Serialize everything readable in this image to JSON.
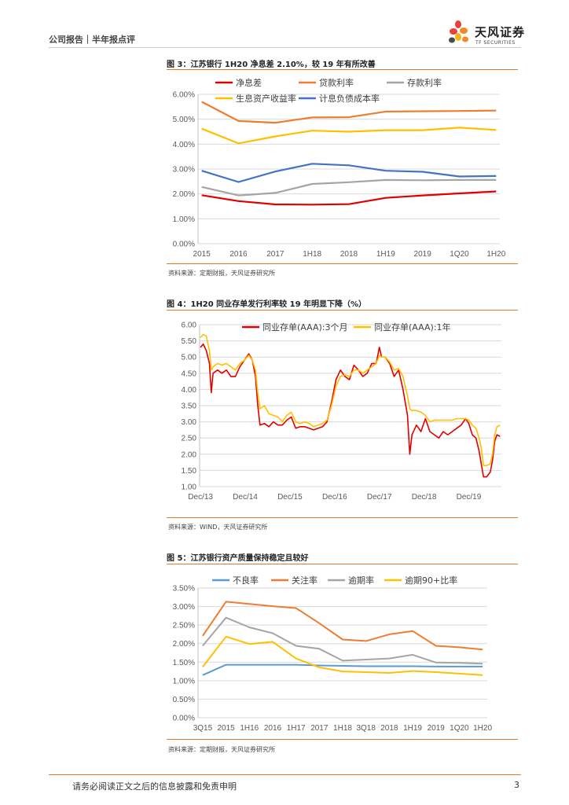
{
  "header": {
    "left": "公司报告｜半年报点评",
    "logo_cn": "天风证券",
    "logo_en": "TF SECURITIES"
  },
  "footer": {
    "disclaimer": "请务必阅读正文之后的信息披露和免责申明",
    "page": "3"
  },
  "colors": {
    "accent": "#e07b28",
    "red": "#e00000",
    "orange": "#ed7d31",
    "gray": "#a5a5a5",
    "yellow": "#ffc000",
    "blue": "#4472c4"
  },
  "figures": [
    {
      "title": "图 3：江苏银行 1H20 净息差 2.10%，较 19 年有所改善",
      "source": "资料来源：定期财报，天风证券研究所"
    },
    {
      "title": "图 4：1H20 同业存单发行利率较 19 年明显下降（%）",
      "source": "资料来源：WIND，天风证券研究所"
    },
    {
      "title": "图 5：江苏银行资产质量保持稳定且较好",
      "source": "资料来源：定期财报，天风证券研究所"
    }
  ],
  "chart_data": [
    {
      "type": "line",
      "categories": [
        "2015",
        "2016",
        "2017",
        "1H18",
        "2018",
        "1H19",
        "2019",
        "1Q20",
        "1H20"
      ],
      "ylim": [
        0,
        6
      ],
      "yticks": [
        "0.00%",
        "1.00%",
        "2.00%",
        "3.00%",
        "4.00%",
        "5.00%",
        "6.00%"
      ],
      "series": [
        {
          "name": "净息差",
          "color": "#e00000",
          "values": [
            1.95,
            1.71,
            1.58,
            1.57,
            1.59,
            1.84,
            1.94,
            2.02,
            2.1
          ]
        },
        {
          "name": "贷款利率",
          "color": "#ed7d31",
          "values": [
            5.7,
            4.93,
            4.86,
            5.07,
            5.08,
            5.31,
            5.32,
            5.33,
            5.35
          ]
        },
        {
          "name": "存款利率",
          "color": "#a5a5a5",
          "values": [
            2.28,
            1.94,
            2.04,
            2.4,
            2.47,
            2.56,
            2.55,
            2.56,
            2.56
          ]
        },
        {
          "name": "生息资产收益率",
          "color": "#ffc000",
          "values": [
            4.62,
            4.03,
            4.31,
            4.54,
            4.5,
            4.56,
            4.56,
            4.66,
            4.57
          ]
        },
        {
          "name": "计息负债成本率",
          "color": "#4472c4",
          "values": [
            2.93,
            2.48,
            2.9,
            3.21,
            3.15,
            2.93,
            2.89,
            2.7,
            2.72
          ]
        }
      ],
      "grid": true,
      "legend": "top"
    },
    {
      "type": "line",
      "x_start": 2013.9,
      "x_end": 2020.65,
      "xticks": [
        {
          "label": "Dec/13",
          "pos": 2013.92
        },
        {
          "label": "Dec/14",
          "pos": 2014.92
        },
        {
          "label": "Dec/15",
          "pos": 2015.92
        },
        {
          "label": "Dec/16",
          "pos": 2016.92
        },
        {
          "label": "Dec/17",
          "pos": 2017.92
        },
        {
          "label": "Dec/18",
          "pos": 2018.92
        },
        {
          "label": "Dec/19",
          "pos": 2019.92
        }
      ],
      "ylim": [
        1,
        6
      ],
      "yticks": [
        "1.00",
        "1.50",
        "2.00",
        "2.50",
        "3.00",
        "3.50",
        "4.00",
        "4.50",
        "5.00",
        "5.50",
        "6.00"
      ],
      "series": [
        {
          "name": "同业存单(AAA):3个月",
          "color": "#e00000",
          "points": [
            [
              2013.92,
              5.3
            ],
            [
              2013.98,
              5.4
            ],
            [
              2014.05,
              5.2
            ],
            [
              2014.12,
              4.8
            ],
            [
              2014.16,
              3.9
            ],
            [
              2014.2,
              4.5
            ],
            [
              2014.3,
              4.6
            ],
            [
              2014.4,
              4.5
            ],
            [
              2014.5,
              4.6
            ],
            [
              2014.6,
              4.4
            ],
            [
              2014.7,
              4.4
            ],
            [
              2014.8,
              4.7
            ],
            [
              2014.9,
              4.9
            ],
            [
              2015.0,
              5.1
            ],
            [
              2015.08,
              4.9
            ],
            [
              2015.15,
              4.4
            ],
            [
              2015.2,
              3.5
            ],
            [
              2015.25,
              2.9
            ],
            [
              2015.35,
              2.95
            ],
            [
              2015.45,
              2.85
            ],
            [
              2015.55,
              3.0
            ],
            [
              2015.65,
              2.9
            ],
            [
              2015.75,
              2.9
            ],
            [
              2015.85,
              3.05
            ],
            [
              2015.95,
              3.15
            ],
            [
              2016.05,
              2.8
            ],
            [
              2016.15,
              2.85
            ],
            [
              2016.25,
              2.85
            ],
            [
              2016.35,
              2.8
            ],
            [
              2016.45,
              2.75
            ],
            [
              2016.55,
              2.8
            ],
            [
              2016.65,
              2.85
            ],
            [
              2016.75,
              3.0
            ],
            [
              2016.85,
              3.6
            ],
            [
              2016.95,
              4.3
            ],
            [
              2017.05,
              4.6
            ],
            [
              2017.15,
              4.4
            ],
            [
              2017.25,
              4.3
            ],
            [
              2017.35,
              4.75
            ],
            [
              2017.45,
              4.6
            ],
            [
              2017.55,
              4.4
            ],
            [
              2017.65,
              4.5
            ],
            [
              2017.75,
              4.8
            ],
            [
              2017.85,
              4.8
            ],
            [
              2017.92,
              5.3
            ],
            [
              2017.97,
              5.0
            ],
            [
              2018.05,
              5.0
            ],
            [
              2018.15,
              4.8
            ],
            [
              2018.25,
              4.4
            ],
            [
              2018.35,
              4.6
            ],
            [
              2018.45,
              4.0
            ],
            [
              2018.55,
              3.2
            ],
            [
              2018.6,
              2.0
            ],
            [
              2018.65,
              2.6
            ],
            [
              2018.75,
              2.9
            ],
            [
              2018.85,
              2.7
            ],
            [
              2018.95,
              3.1
            ],
            [
              2019.05,
              2.7
            ],
            [
              2019.15,
              2.6
            ],
            [
              2019.25,
              2.5
            ],
            [
              2019.35,
              2.7
            ],
            [
              2019.45,
              2.6
            ],
            [
              2019.55,
              2.7
            ],
            [
              2019.65,
              2.8
            ],
            [
              2019.75,
              2.9
            ],
            [
              2019.85,
              3.1
            ],
            [
              2019.92,
              2.95
            ],
            [
              2020.0,
              2.6
            ],
            [
              2020.08,
              2.5
            ],
            [
              2020.15,
              2.1
            ],
            [
              2020.2,
              1.7
            ],
            [
              2020.25,
              1.3
            ],
            [
              2020.32,
              1.3
            ],
            [
              2020.4,
              1.45
            ],
            [
              2020.45,
              1.8
            ],
            [
              2020.5,
              2.4
            ],
            [
              2020.55,
              2.6
            ],
            [
              2020.62,
              2.55
            ]
          ]
        },
        {
          "name": "同业存单(AAA):1年",
          "color": "#ffc000",
          "points": [
            [
              2013.92,
              5.6
            ],
            [
              2013.98,
              5.7
            ],
            [
              2014.05,
              5.65
            ],
            [
              2014.12,
              5.2
            ],
            [
              2014.16,
              4.6
            ],
            [
              2014.2,
              4.7
            ],
            [
              2014.3,
              4.8
            ],
            [
              2014.4,
              4.75
            ],
            [
              2014.5,
              4.8
            ],
            [
              2014.6,
              4.7
            ],
            [
              2014.7,
              4.6
            ],
            [
              2014.8,
              4.8
            ],
            [
              2014.9,
              4.9
            ],
            [
              2015.0,
              5.05
            ],
            [
              2015.08,
              4.9
            ],
            [
              2015.15,
              4.6
            ],
            [
              2015.2,
              3.9
            ],
            [
              2015.25,
              3.4
            ],
            [
              2015.35,
              3.5
            ],
            [
              2015.45,
              3.25
            ],
            [
              2015.55,
              3.2
            ],
            [
              2015.65,
              3.15
            ],
            [
              2015.75,
              3.0
            ],
            [
              2015.85,
              3.2
            ],
            [
              2015.95,
              3.3
            ],
            [
              2016.05,
              3.0
            ],
            [
              2016.15,
              2.95
            ],
            [
              2016.25,
              3.0
            ],
            [
              2016.35,
              2.95
            ],
            [
              2016.45,
              2.85
            ],
            [
              2016.55,
              2.9
            ],
            [
              2016.65,
              2.95
            ],
            [
              2016.75,
              3.05
            ],
            [
              2016.85,
              3.5
            ],
            [
              2016.95,
              4.1
            ],
            [
              2017.05,
              4.4
            ],
            [
              2017.15,
              4.45
            ],
            [
              2017.25,
              4.4
            ],
            [
              2017.35,
              4.6
            ],
            [
              2017.45,
              4.6
            ],
            [
              2017.55,
              4.5
            ],
            [
              2017.65,
              4.6
            ],
            [
              2017.75,
              4.7
            ],
            [
              2017.85,
              4.8
            ],
            [
              2017.92,
              5.05
            ],
            [
              2017.97,
              5.0
            ],
            [
              2018.05,
              5.0
            ],
            [
              2018.15,
              4.85
            ],
            [
              2018.25,
              4.6
            ],
            [
              2018.35,
              4.65
            ],
            [
              2018.45,
              4.4
            ],
            [
              2018.55,
              3.8
            ],
            [
              2018.6,
              3.4
            ],
            [
              2018.65,
              3.35
            ],
            [
              2018.75,
              3.35
            ],
            [
              2018.85,
              3.3
            ],
            [
              2018.95,
              3.2
            ],
            [
              2019.05,
              3.0
            ],
            [
              2019.15,
              3.05
            ],
            [
              2019.25,
              3.05
            ],
            [
              2019.35,
              3.05
            ],
            [
              2019.45,
              3.05
            ],
            [
              2019.55,
              3.05
            ],
            [
              2019.65,
              3.1
            ],
            [
              2019.75,
              3.1
            ],
            [
              2019.85,
              3.1
            ],
            [
              2019.92,
              3.05
            ],
            [
              2020.0,
              2.9
            ],
            [
              2020.08,
              2.8
            ],
            [
              2020.15,
              2.5
            ],
            [
              2020.2,
              2.2
            ],
            [
              2020.25,
              1.65
            ],
            [
              2020.32,
              1.65
            ],
            [
              2020.4,
              1.7
            ],
            [
              2020.45,
              2.0
            ],
            [
              2020.5,
              2.6
            ],
            [
              2020.55,
              2.85
            ],
            [
              2020.62,
              2.9
            ]
          ]
        }
      ],
      "grid": true,
      "legend": "top"
    },
    {
      "type": "line",
      "categories": [
        "3Q15",
        "2015",
        "1H16",
        "2016",
        "1H17",
        "2017",
        "1H18",
        "3Q18",
        "2018",
        "1H19",
        "2019",
        "1Q20",
        "1H20"
      ],
      "ylim": [
        0,
        3.5
      ],
      "yticks": [
        "0.00%",
        "0.50%",
        "1.00%",
        "1.50%",
        "2.00%",
        "2.50%",
        "3.00%",
        "3.50%"
      ],
      "series": [
        {
          "name": "不良率",
          "color": "#5b9bd5",
          "values": [
            1.15,
            1.43,
            1.43,
            1.43,
            1.43,
            1.41,
            1.4,
            1.39,
            1.39,
            1.39,
            1.38,
            1.38,
            1.38
          ]
        },
        {
          "name": "关注率",
          "color": "#ed7d31",
          "values": [
            2.21,
            3.13,
            3.07,
            3.01,
            2.96,
            2.55,
            2.11,
            2.07,
            2.25,
            2.34,
            1.94,
            1.9,
            1.84
          ]
        },
        {
          "name": "逾期率",
          "color": "#a5a5a5",
          "values": [
            1.94,
            2.7,
            2.44,
            2.28,
            1.94,
            1.86,
            1.54,
            1.57,
            1.6,
            1.7,
            1.49,
            1.48,
            1.46
          ]
        },
        {
          "name": "逾期90+比率",
          "color": "#ffc000",
          "values": [
            1.37,
            2.19,
            1.99,
            2.05,
            1.6,
            1.36,
            1.25,
            1.23,
            1.21,
            1.26,
            1.23,
            1.19,
            1.15
          ]
        }
      ],
      "grid": true,
      "legend": "top"
    }
  ]
}
